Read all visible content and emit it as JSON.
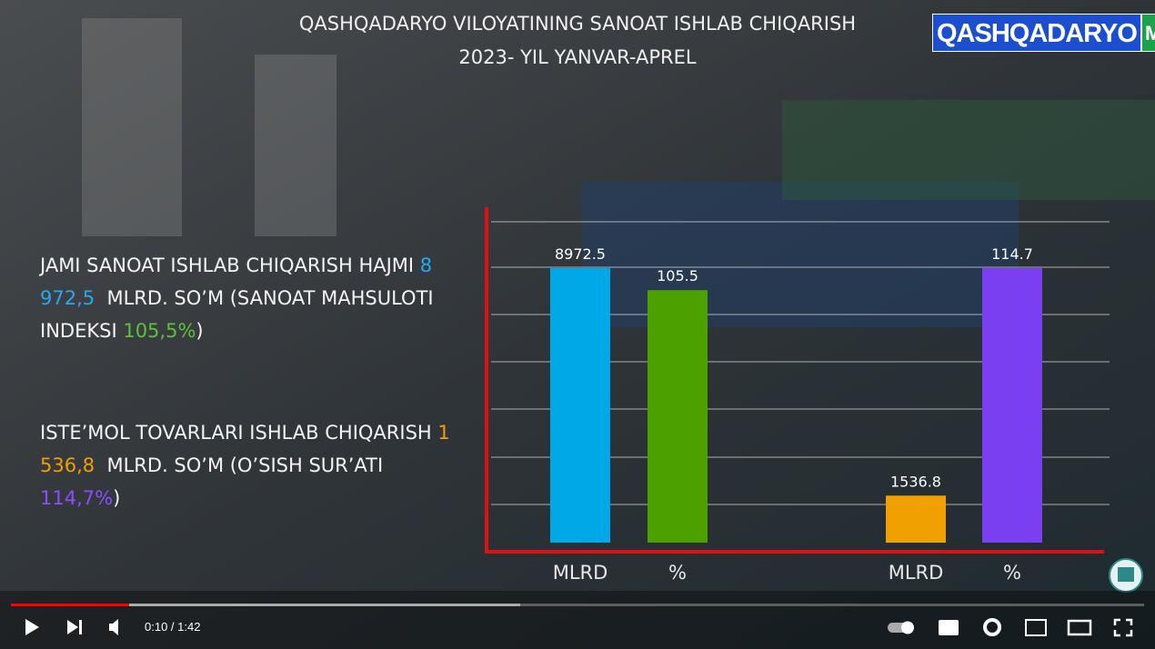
{
  "video": {
    "title_lines": [
      "QASHQADARYO VILOYATINING SANOAT ISHLAB CHIQARISH",
      "2023- YIL YANVAR-APREL"
    ],
    "logo": {
      "name": "QASHQADARYO",
      "badge": "MTRK"
    },
    "paragraphs": [
      [
        "JAMI SANOAT ISHLAB CHIQARISH HAJMI",
        "8 972,5",
        "MLRD. SO’M (SANOAT MAHSULOTI INDEKSI",
        "105,5%",
        ")"
      ],
      [
        "ISTE’MOL TOVARLARI ISHLAB CHIQARISH",
        "1 536,8",
        "MLRD. SO’M (O’SISH SUR’ATI",
        "114,7%",
        ")"
      ]
    ],
    "time": "0:10 / 1:42"
  },
  "chart_data": {
    "type": "bar",
    "categories": [
      "MLRD",
      "%",
      "MLRD",
      "%"
    ],
    "values": [
      8972.5,
      105.5,
      1536.8,
      114.7
    ],
    "colors": [
      "#00a8e8",
      "#4ca000",
      "#f0a000",
      "#7b3ff2"
    ]
  }
}
